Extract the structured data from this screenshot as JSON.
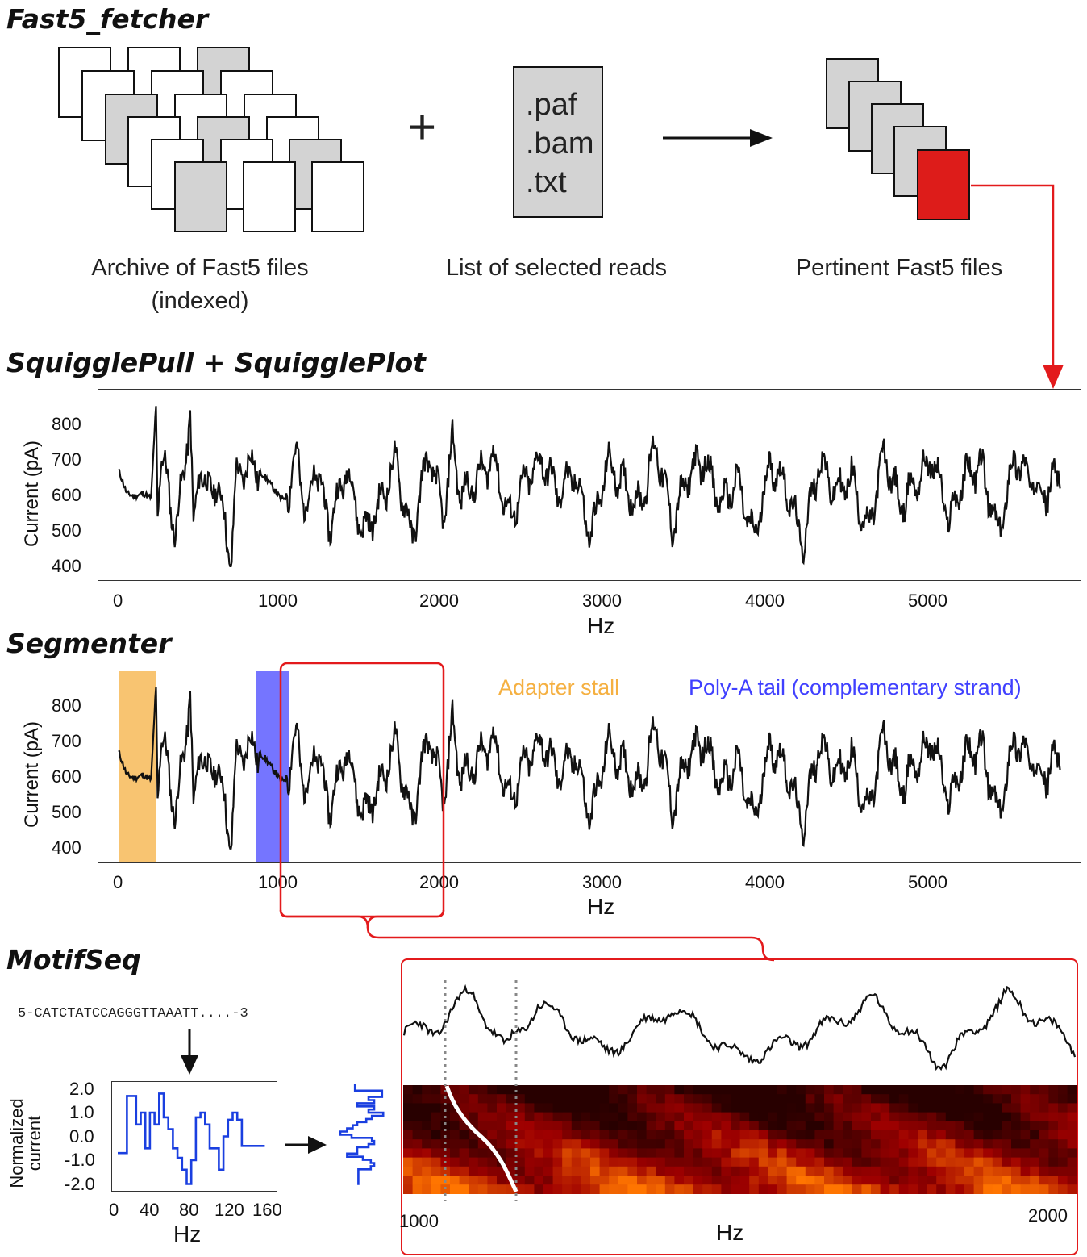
{
  "colors": {
    "card_gray": "#d3d3d3",
    "card_red": "#dd1c1a",
    "connector_red": "#e31a1c",
    "adapter_stall": "#f5b041",
    "poly_a": "#4040ff",
    "signal": "#111111",
    "motif": "#1a3fe0",
    "heatmap_dark": "#1a0000",
    "heatmap_bright": "#ff4500",
    "path_white": "#ffffff"
  },
  "fetcher": {
    "title": "Fast5_fetcher",
    "plus": "+",
    "archive_caption_line1": "Archive of Fast5 files",
    "archive_caption_line2": "(indexed)",
    "list_ext_paf": ".paf",
    "list_ext_bam": ".bam",
    "list_ext_txt": ".txt",
    "list_caption": "List of selected reads",
    "pertinent_caption": "Pertinent Fast5 files",
    "arrow_icon": "right-arrow-icon"
  },
  "squiggle": {
    "title": "SquigglePull + SquigglePlot",
    "ylabel": "Current (pA)",
    "xlabel": "Hz",
    "yticks": [
      "800",
      "700",
      "600",
      "500",
      "400"
    ],
    "xticks": [
      "0",
      "1000",
      "2000",
      "3000",
      "4000",
      "5000"
    ]
  },
  "segmenter": {
    "title": "Segmenter",
    "ylabel": "Current (pA)",
    "xlabel": "Hz",
    "yticks": [
      "800",
      "700",
      "600",
      "500",
      "400"
    ],
    "xticks": [
      "0",
      "1000",
      "2000",
      "3000",
      "4000",
      "5000"
    ],
    "legend_adapter": "Adapter stall",
    "legend_polya": "Poly-A tail (complementary strand)"
  },
  "motifseq": {
    "title": "MotifSeq",
    "sequence": "5-CATCTATCCAGGGTTAAATT....-3",
    "ylabel_line1": "Normalized",
    "ylabel_line2": "current",
    "xlabel": "Hz",
    "yticks": [
      "2.0",
      "1.0",
      "0.0",
      "-1.0",
      "-2.0"
    ],
    "xticks": [
      "0",
      "40",
      "80",
      "120",
      "160"
    ],
    "zoom_xlabel": "Hz",
    "zoom_xtick_left": "1000",
    "zoom_xtick_right": "2000"
  },
  "chart_data": [
    {
      "type": "line",
      "title": "SquigglePull + SquigglePlot",
      "xlabel": "Hz",
      "ylabel": "Current (pA)",
      "xlim": [
        0,
        5800
      ],
      "ylim": [
        370,
        880
      ],
      "series": [
        {
          "x": [
            0,
            50,
            100,
            150,
            200,
            230,
            240,
            260,
            300,
            350,
            400,
            440,
            460,
            500,
            550,
            600,
            650,
            690,
            720,
            800,
            900,
            1000,
            1050,
            1100,
            1150,
            1200,
            1300,
            1400,
            1500,
            1600,
            1700,
            1800,
            1900,
            2000,
            2050,
            2100,
            2200,
            2300,
            2400,
            2500,
            2600,
            2700,
            2800,
            2900,
            3000,
            3100,
            3200,
            3300,
            3400,
            3500,
            3600,
            3700,
            3800,
            3900,
            4000,
            4100,
            4200,
            4300,
            4400,
            4500,
            4600,
            4700,
            4800,
            4900,
            5000,
            5100,
            5200,
            5300,
            5400,
            5500,
            5600,
            5700,
            5780
          ],
          "y": [
            670,
            600,
            590,
            600,
            585,
            870,
            560,
            700,
            640,
            470,
            670,
            840,
            470,
            700,
            590,
            640,
            520,
            380,
            640,
            690,
            650,
            580,
            600,
            740,
            510,
            690,
            500,
            680,
            480,
            560,
            700,
            460,
            720,
            530,
            760,
            590,
            640,
            710,
            520,
            640,
            700,
            600,
            660,
            470,
            690,
            630,
            560,
            750,
            500,
            660,
            700,
            560,
            640,
            460,
            690,
            620,
            440,
            700,
            600,
            650,
            480,
            720,
            560,
            640,
            700,
            520,
            660,
            680,
            470,
            710,
            640,
            600,
            680
          ]
        }
      ]
    },
    {
      "type": "line",
      "title": "Segmenter",
      "xlabel": "Hz",
      "ylabel": "Current (pA)",
      "xlim": [
        0,
        5800
      ],
      "ylim": [
        370,
        880
      ],
      "regions": [
        {
          "name": "Adapter stall",
          "x": [
            0,
            230
          ]
        },
        {
          "name": "Poly-A tail (complementary strand)",
          "x": [
            850,
            1050
          ]
        }
      ],
      "zoom_window": [
        1000,
        2000
      ]
    },
    {
      "type": "line",
      "title": "MotifSeq motif",
      "xlabel": "Hz",
      "ylabel": "Normalized current",
      "xlim": [
        0,
        170
      ],
      "ylim": [
        -2.2,
        2.2
      ],
      "series": [
        {
          "x": [
            0,
            10,
            10,
            20,
            20,
            25,
            25,
            30,
            30,
            35,
            35,
            40,
            40,
            45,
            45,
            50,
            50,
            55,
            55,
            60,
            60,
            65,
            65,
            70,
            70,
            75,
            75,
            80,
            80,
            85,
            85,
            90,
            90,
            95,
            95,
            100,
            100,
            110,
            110,
            115,
            115,
            120,
            120,
            125,
            125,
            130,
            130,
            135,
            135,
            140,
            140,
            145,
            145,
            150,
            150,
            160
          ],
          "y": [
            -0.7,
            -0.7,
            1.7,
            1.7,
            0.5,
            0.5,
            1.0,
            1.0,
            -0.5,
            -0.5,
            1.0,
            1.0,
            0.5,
            0.5,
            1.8,
            1.8,
            0.8,
            0.8,
            0.3,
            0.3,
            -0.5,
            -0.5,
            -0.9,
            -0.9,
            -1.4,
            -1.4,
            -2.0,
            -2.0,
            -1.0,
            -1.0,
            0.8,
            0.8,
            1.0,
            1.0,
            0.5,
            0.5,
            -0.5,
            -0.5,
            -1.4,
            -1.4,
            0.0,
            0.0,
            0.7,
            0.7,
            1.0,
            1.0,
            0.7,
            0.7,
            -0.4,
            -0.4,
            -0.4,
            -0.4,
            -0.4,
            -0.4,
            -0.4,
            -0.4
          ]
        }
      ]
    }
  ]
}
